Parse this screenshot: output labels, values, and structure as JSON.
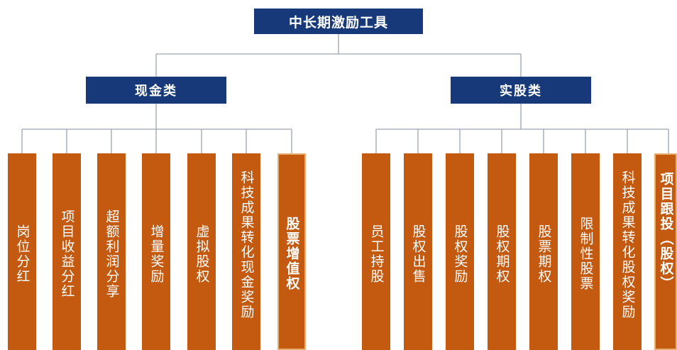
{
  "root": {
    "label": "中长期激励工具"
  },
  "cash": {
    "label": "现金类",
    "items": [
      "岗位分红",
      "项目收益分红",
      "超额利润分享",
      "增量奖励",
      "虚拟股权",
      "科技成果转化现金奖励",
      "股票增值权"
    ]
  },
  "equity": {
    "label": "实股类",
    "items": [
      "员工持股",
      "股权出售",
      "股权奖励",
      "股权期权",
      "股票期权",
      "限制性股票",
      "科技成果转化股权奖励",
      "项目跟投（股权）"
    ]
  },
  "colors": {
    "header": "#17397a",
    "leaf": "#c45a10",
    "line": "#9aa4b4"
  }
}
